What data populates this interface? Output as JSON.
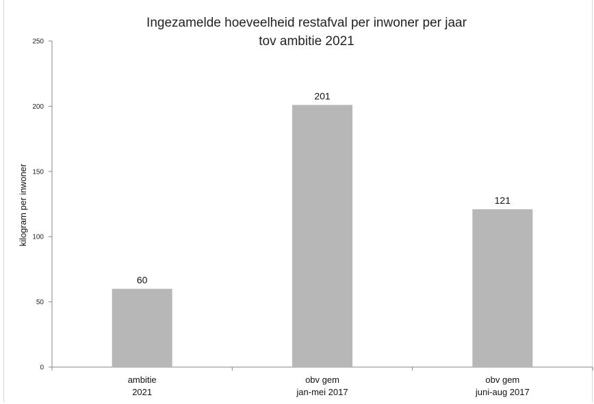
{
  "chart_data": {
    "type": "bar",
    "title": [
      "Ingezamelde hoeveelheid restafval per inwoner per jaar",
      "tov ambitie 2021"
    ],
    "xlabel": "",
    "ylabel": "kilogram per inwoner",
    "ylim": [
      0,
      250
    ],
    "yticks": [
      0,
      50,
      100,
      150,
      200,
      250
    ],
    "categories": [
      [
        "ambitie",
        "2021"
      ],
      [
        "obv gem",
        "jan-mei 2017"
      ],
      [
        "obv gem",
        "juni-aug 2017"
      ]
    ],
    "values": [
      60,
      201,
      121
    ],
    "data_labels": [
      "60",
      "201",
      "121"
    ],
    "bar_color": "#b7b7b7",
    "grid": false,
    "legend": "none"
  }
}
